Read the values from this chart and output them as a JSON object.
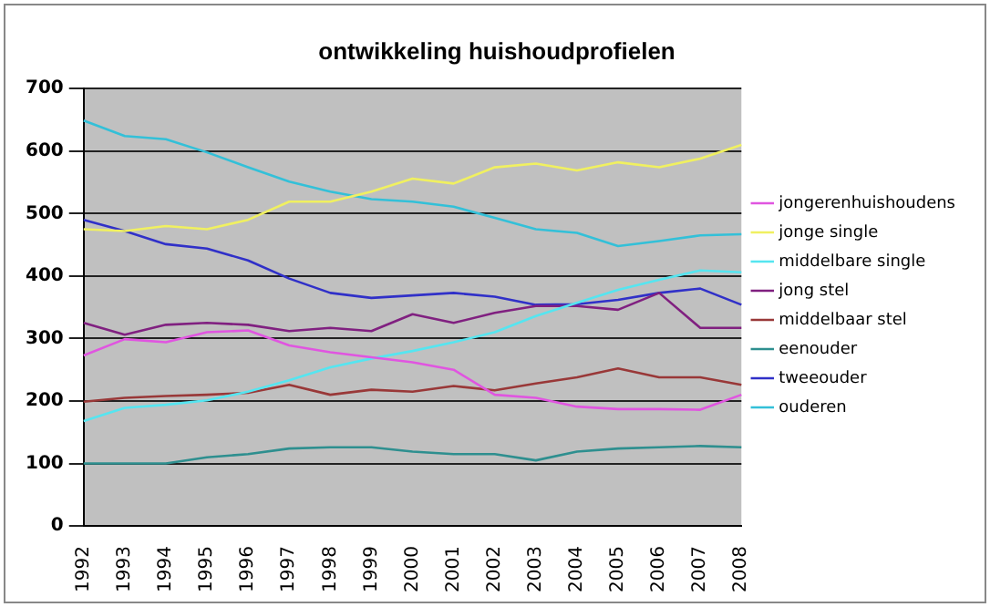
{
  "chart_data": {
    "type": "line",
    "title": "ontwikkeling huishoudprofielen",
    "categories": [
      "1992",
      "1993",
      "1994",
      "1995",
      "1996",
      "1997",
      "1998",
      "1999",
      "2000",
      "2001",
      "2002",
      "2003",
      "2004",
      "2005",
      "2006",
      "2007",
      "2008"
    ],
    "series": [
      {
        "name": "jongerenhuishoudens",
        "color": "#e055e0",
        "values": [
          273,
          299,
          294,
          310,
          313,
          289,
          278,
          270,
          262,
          250,
          210,
          205,
          191,
          187,
          187,
          186,
          210
        ]
      },
      {
        "name": "jonge single",
        "color": "#f0f060",
        "values": [
          475,
          472,
          480,
          475,
          490,
          519,
          519,
          535,
          556,
          548,
          574,
          580,
          569,
          582,
          574,
          588,
          610
        ]
      },
      {
        "name": "middelbare single",
        "color": "#55e5f0",
        "values": [
          168,
          189,
          194,
          201,
          215,
          233,
          254,
          268,
          280,
          294,
          310,
          336,
          357,
          378,
          394,
          409,
          406
        ]
      },
      {
        "name": "jong stel",
        "color": "#802080",
        "values": [
          325,
          306,
          322,
          325,
          322,
          312,
          317,
          312,
          339,
          325,
          341,
          352,
          352,
          346,
          373,
          317,
          317
        ]
      },
      {
        "name": "middelbaar stel",
        "color": "#993838",
        "values": [
          199,
          205,
          208,
          210,
          213,
          226,
          210,
          218,
          215,
          224,
          217,
          228,
          238,
          252,
          238,
          238,
          226
        ]
      },
      {
        "name": "eenouder",
        "color": "#2e8f8f",
        "values": [
          100,
          100,
          100,
          110,
          115,
          124,
          126,
          126,
          119,
          115,
          115,
          105,
          119,
          124,
          126,
          128,
          126
        ]
      },
      {
        "name": "tweeouder",
        "color": "#3030c8",
        "values": [
          490,
          472,
          451,
          444,
          425,
          396,
          373,
          365,
          369,
          373,
          367,
          354,
          355,
          362,
          373,
          380,
          354
        ]
      },
      {
        "name": "ouderen",
        "color": "#33c0d8",
        "values": [
          649,
          624,
          619,
          598,
          574,
          551,
          535,
          523,
          519,
          511,
          493,
          475,
          469,
          448,
          456,
          465,
          467
        ]
      }
    ],
    "ylim": [
      0,
      700
    ],
    "yticks": [
      0,
      100,
      200,
      300,
      400,
      500,
      600,
      700
    ],
    "grid": "y",
    "legend": "right",
    "marker": "none",
    "line_style": "solid"
  }
}
